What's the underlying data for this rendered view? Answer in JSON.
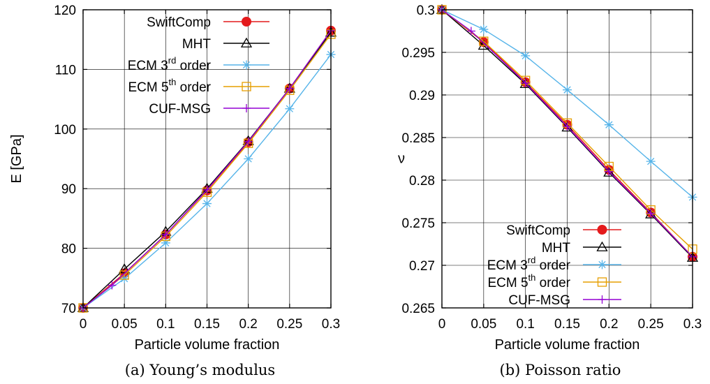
{
  "chart_data": [
    {
      "type": "line",
      "caption": "(a)  Young’s modulus",
      "xlabel": "Particle volume fraction",
      "ylabel": "E [GPa]",
      "xlim": [
        0,
        0.3
      ],
      "ylim": [
        70,
        120
      ],
      "xticks": [
        0,
        0.05,
        0.1,
        0.15,
        0.2,
        0.25,
        0.3
      ],
      "xtick_labels": [
        "0",
        "0.05",
        "0.1",
        "0.15",
        "0.2",
        "0.25",
        "0.3"
      ],
      "yticks": [
        70,
        80,
        90,
        100,
        110,
        120
      ],
      "ytick_labels": [
        "70",
        "80",
        "90",
        "100",
        "110",
        "120"
      ],
      "grid": true,
      "legend_position": "top-center",
      "series": [
        {
          "name": "SwiftComp",
          "label": {
            "pre": "SwiftComp",
            "sup": "",
            "post": ""
          },
          "color": "#e41a1c",
          "marker": "filled-circle",
          "x": [
            0,
            0.05,
            0.1,
            0.15,
            0.2,
            0.25,
            0.3
          ],
          "y": [
            70.0,
            75.8,
            82.3,
            89.7,
            97.8,
            106.8,
            116.5
          ]
        },
        {
          "name": "MHT",
          "label": {
            "pre": "MHT",
            "sup": "",
            "post": ""
          },
          "color": "#000000",
          "marker": "open-triangle",
          "x": [
            0,
            0.05,
            0.1,
            0.15,
            0.2,
            0.25,
            0.3
          ],
          "y": [
            70.0,
            76.5,
            82.8,
            90.0,
            98.0,
            106.8,
            116.2
          ]
        },
        {
          "name": "ECM 3rd order",
          "label": {
            "pre": "ECM 3",
            "sup": "rd",
            "post": " order"
          },
          "color": "#56b4e9",
          "marker": "asterisk",
          "x": [
            0,
            0.05,
            0.1,
            0.15,
            0.2,
            0.25,
            0.3
          ],
          "y": [
            70.0,
            74.9,
            80.9,
            87.5,
            95.0,
            103.4,
            112.5
          ]
        },
        {
          "name": "ECM 5th order",
          "label": {
            "pre": "ECM 5",
            "sup": "th",
            "post": " order"
          },
          "color": "#e69f00",
          "marker": "open-square",
          "x": [
            0,
            0.05,
            0.1,
            0.15,
            0.2,
            0.25,
            0.3
          ],
          "y": [
            70.0,
            75.5,
            82.0,
            89.4,
            97.6,
            106.5,
            115.9
          ]
        },
        {
          "name": "CUF-MSG",
          "label": {
            "pre": "CUF-MSG",
            "sup": "",
            "post": ""
          },
          "color": "#9400d3",
          "marker": "plus",
          "x": [
            0,
            0.035,
            0.1,
            0.15,
            0.2,
            0.25,
            0.3
          ],
          "y": [
            70.0,
            73.8,
            82.3,
            89.8,
            97.9,
            106.8,
            116.5
          ]
        }
      ]
    },
    {
      "type": "line",
      "caption": "(b)  Poisson ratio",
      "xlabel": "Particle volume fraction",
      "ylabel": "ν",
      "xlim": [
        0,
        0.3
      ],
      "ylim": [
        0.265,
        0.3
      ],
      "xticks": [
        0,
        0.05,
        0.1,
        0.15,
        0.2,
        0.25,
        0.3
      ],
      "xtick_labels": [
        "0",
        "0.05",
        "0.1",
        "0.15",
        "0.2",
        "0.25",
        "0.3"
      ],
      "yticks": [
        0.265,
        0.27,
        0.275,
        0.28,
        0.285,
        0.29,
        0.295,
        0.3
      ],
      "ytick_labels": [
        "0.265",
        "0.27",
        "0.275",
        "0.28",
        "0.285",
        "0.29",
        "0.295",
        "0.3"
      ],
      "grid": true,
      "legend_position": "bottom-right",
      "series": [
        {
          "name": "SwiftComp",
          "label": {
            "pre": "SwiftComp",
            "sup": "",
            "post": ""
          },
          "color": "#e41a1c",
          "marker": "filled-circle",
          "x": [
            0,
            0.05,
            0.1,
            0.15,
            0.2,
            0.25,
            0.3
          ],
          "y": [
            0.3,
            0.2962,
            0.2915,
            0.2865,
            0.2812,
            0.2762,
            0.271
          ]
        },
        {
          "name": "MHT",
          "label": {
            "pre": "MHT",
            "sup": "",
            "post": ""
          },
          "color": "#000000",
          "marker": "open-triangle",
          "x": [
            0,
            0.05,
            0.1,
            0.15,
            0.2,
            0.25,
            0.3
          ],
          "y": [
            0.3,
            0.2958,
            0.2913,
            0.2862,
            0.2809,
            0.276,
            0.2709
          ]
        },
        {
          "name": "ECM 3rd order",
          "label": {
            "pre": "ECM 3",
            "sup": "rd",
            "post": " order"
          },
          "color": "#56b4e9",
          "marker": "asterisk",
          "x": [
            0,
            0.05,
            0.1,
            0.15,
            0.2,
            0.25,
            0.3
          ],
          "y": [
            0.3,
            0.2977,
            0.2946,
            0.2906,
            0.2865,
            0.2822,
            0.278
          ]
        },
        {
          "name": "ECM 5th order",
          "label": {
            "pre": "ECM 5",
            "sup": "th",
            "post": " order"
          },
          "color": "#e69f00",
          "marker": "open-square",
          "x": [
            0,
            0.05,
            0.1,
            0.15,
            0.2,
            0.25,
            0.3
          ],
          "y": [
            0.3,
            0.2963,
            0.2917,
            0.2867,
            0.2816,
            0.2765,
            0.2719
          ]
        },
        {
          "name": "CUF-MSG",
          "label": {
            "pre": "CUF-MSG",
            "sup": "",
            "post": ""
          },
          "color": "#9400d3",
          "marker": "plus",
          "x": [
            0,
            0.035,
            0.1,
            0.15,
            0.2,
            0.25,
            0.3
          ],
          "y": [
            0.3,
            0.2975,
            0.2914,
            0.2863,
            0.281,
            0.2761,
            0.271
          ]
        }
      ]
    }
  ]
}
